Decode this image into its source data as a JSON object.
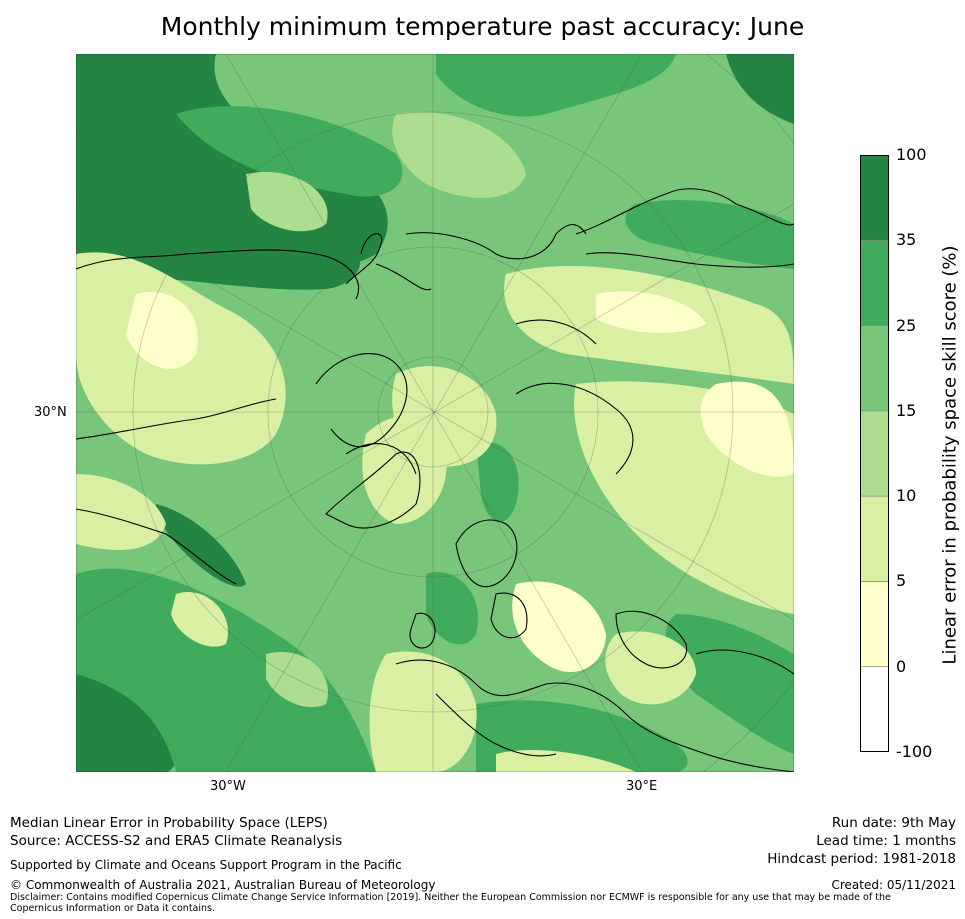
{
  "title": "Monthly minimum temperature past accuracy: June",
  "map": {
    "lat_labels": [
      "30°N"
    ],
    "lon_labels": [
      "30°W",
      "30°E"
    ]
  },
  "colorbar": {
    "label": "Linear error in probability space skill score (%)",
    "ticks": [
      "100",
      "35",
      "25",
      "15",
      "10",
      "5",
      "0",
      "-100"
    ],
    "bins": [
      {
        "range": "35 to 100",
        "color": "#238443"
      },
      {
        "range": "25 to 35",
        "color": "#41ab5d"
      },
      {
        "range": "15 to 25",
        "color": "#78c679"
      },
      {
        "range": "10 to 15",
        "color": "#addd8e"
      },
      {
        "range": "5 to 10",
        "color": "#d9f0a3"
      },
      {
        "range": "0 to 5",
        "color": "#ffffcc"
      },
      {
        "range": "-100 to 0",
        "color": "#ffffff"
      }
    ]
  },
  "footer": {
    "line1": "Median Linear Error in Probability Space (LEPS)",
    "line2": "Source: ACCESS-S2 and ERA5 Climate Reanalysis",
    "support": "Supported by Climate and Oceans Support Program in the Pacific",
    "copyright": "© Commonwealth of Australia 2021, Australian Bureau of Meteorology",
    "disclaimer": "Disclaimer: Contains modified Copernicus Climate Change Service Information [2019]. Neither the European Commission nor ECMWF is responsible for any use that may be made of the Copernicus Information or Data it contains.",
    "run_date": "Run date: 9th May",
    "lead_time": "Lead time: 1 months",
    "hindcast": "Hindcast period: 1981-2018",
    "created": "Created: 05/11/2021"
  }
}
